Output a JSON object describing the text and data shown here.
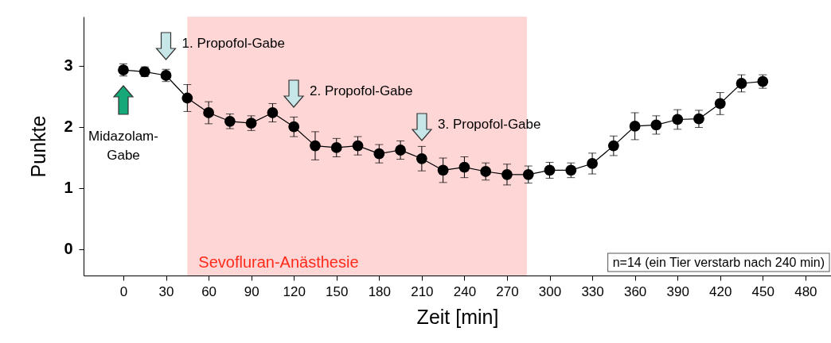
{
  "chart_data": {
    "type": "line",
    "xlabel": "Zeit [min]",
    "ylabel": "Punkte",
    "x": [
      0,
      15,
      30,
      45,
      60,
      75,
      90,
      105,
      120,
      135,
      150,
      165,
      180,
      195,
      210,
      225,
      240,
      255,
      270,
      285,
      300,
      315,
      330,
      345,
      360,
      375,
      390,
      405,
      420,
      435,
      450
    ],
    "series": [
      {
        "color": "#000000",
        "values": [
          2.93,
          2.9,
          2.84,
          2.47,
          2.23,
          2.09,
          2.06,
          2.23,
          2.0,
          1.69,
          1.66,
          1.69,
          1.56,
          1.62,
          1.48,
          1.29,
          1.34,
          1.27,
          1.22,
          1.22,
          1.29,
          1.29,
          1.4,
          1.69,
          2.01,
          2.03,
          2.12,
          2.13,
          2.38,
          2.71,
          2.74
        ],
        "errors": [
          0.1,
          0.08,
          0.1,
          0.22,
          0.18,
          0.12,
          0.12,
          0.15,
          0.16,
          0.23,
          0.15,
          0.15,
          0.15,
          0.15,
          0.2,
          0.2,
          0.17,
          0.14,
          0.17,
          0.14,
          0.13,
          0.12,
          0.17,
          0.16,
          0.22,
          0.15,
          0.16,
          0.14,
          0.18,
          0.14,
          0.11
        ]
      }
    ],
    "marker": "circle",
    "line_style": "solid",
    "xlim": [
      -28,
      498
    ],
    "ylim": [
      -0.43,
      3.8
    ],
    "xticks": [
      0,
      30,
      60,
      90,
      120,
      150,
      180,
      210,
      240,
      270,
      300,
      330,
      360,
      390,
      420,
      450,
      480
    ],
    "yticks": [
      0,
      1,
      2,
      3
    ],
    "bands": [
      {
        "axis": "x",
        "from": 45,
        "to": 284,
        "label": "Sevofluran-Anästhesie",
        "color": "#ffd6d6"
      }
    ],
    "annotations": [
      "Midazolam-Gabe",
      "1. Propofol-Gabe",
      "2. Propofol-Gabe",
      "3. Propofol-Gabe",
      "n=14 (ein Tier verstarb nach 240 min)"
    ],
    "grid": false
  }
}
